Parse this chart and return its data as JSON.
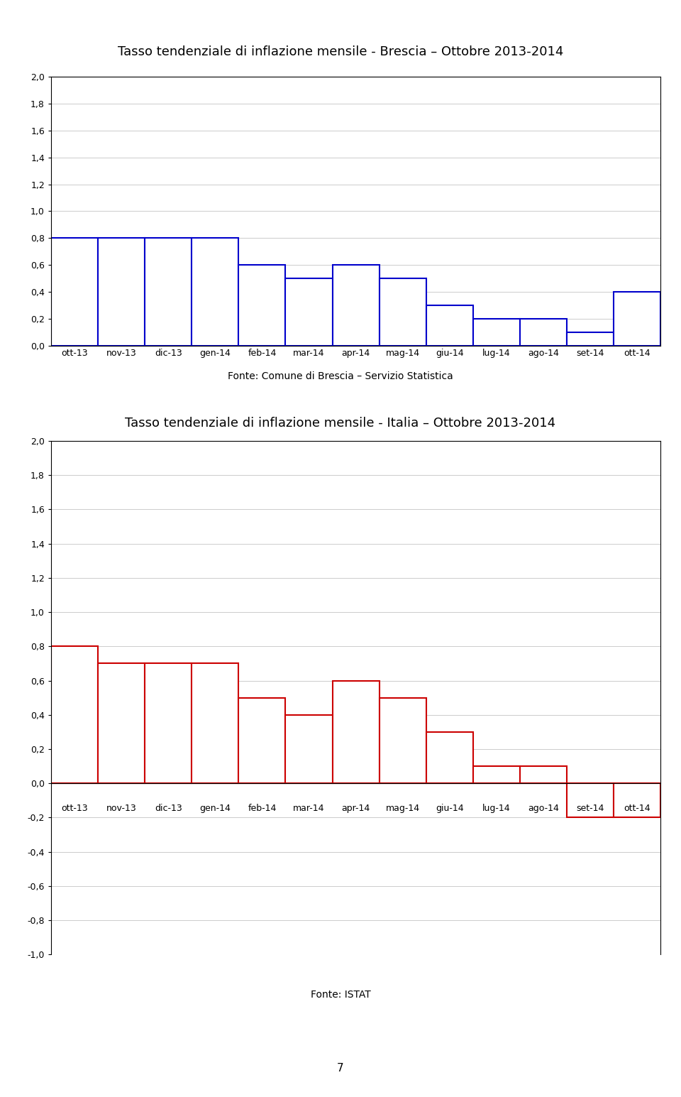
{
  "title1": "Tasso tendenziale di inflazione mensile - Brescia – Ottobre 2013-2014",
  "title2": "Tasso tendenziale di inflazione mensile - Italia – Ottobre 2013-2014",
  "fonte1": "Fonte: Comune di Brescia – Servizio Statistica",
  "fonte2": "Fonte: ISTAT",
  "page_number": "7",
  "categories": [
    "ott-13",
    "nov-13",
    "dic-13",
    "gen-14",
    "feb-14",
    "mar-14",
    "apr-14",
    "mag-14",
    "giu-14",
    "lug-14",
    "ago-14",
    "set-14",
    "ott-14"
  ],
  "brescia_values": [
    0.8,
    0.8,
    0.8,
    0.8,
    0.6,
    0.5,
    0.6,
    0.5,
    0.3,
    0.2,
    0.2,
    0.1,
    0.4
  ],
  "italia_values": [
    0.8,
    0.7,
    0.7,
    0.7,
    0.5,
    0.4,
    0.6,
    0.5,
    0.3,
    0.1,
    0.1,
    -0.2,
    -0.2
  ],
  "brescia_color": "#0000CC",
  "italia_color": "#CC0000",
  "ylim1": [
    0.0,
    2.0
  ],
  "ylim2": [
    -1.0,
    2.0
  ],
  "yticks1": [
    0.0,
    0.2,
    0.4,
    0.6,
    0.8,
    1.0,
    1.2,
    1.4,
    1.6,
    1.8,
    2.0
  ],
  "yticks2": [
    -1.0,
    -0.8,
    -0.6,
    -0.4,
    -0.2,
    0.0,
    0.2,
    0.4,
    0.6,
    0.8,
    1.0,
    1.2,
    1.4,
    1.6,
    1.8,
    2.0
  ],
  "background_color": "#ffffff",
  "grid_color": "#cccccc",
  "title_fontsize": 13,
  "tick_fontsize": 9,
  "fonte_fontsize": 10,
  "page_fontsize": 11
}
